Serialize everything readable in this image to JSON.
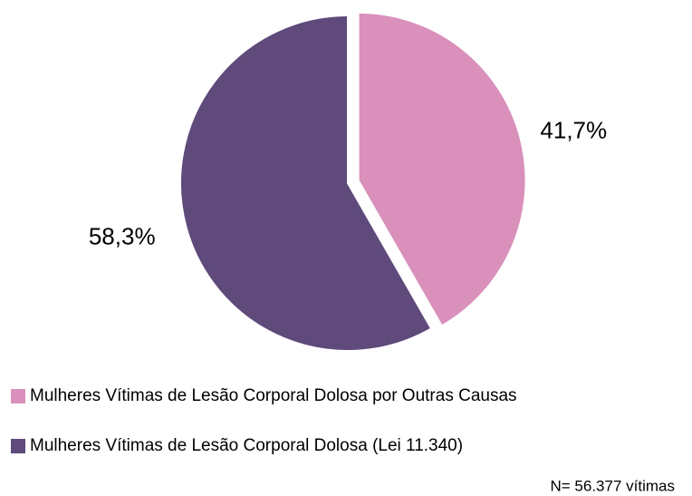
{
  "chart_data": {
    "type": "pie",
    "categories": [
      "Mulheres Vítimas de Lesão Corporal Dolosa por Outras Causas",
      "Mulheres Vítimas de Lesão Corporal Dolosa (Lei 11.340)"
    ],
    "values": [
      41.7,
      58.3
    ],
    "value_labels": [
      "41,7%",
      "58,3%"
    ],
    "colors": [
      "#d990bb",
      "#5f4a7b"
    ],
    "note": "N= 56.377 vítimas"
  }
}
